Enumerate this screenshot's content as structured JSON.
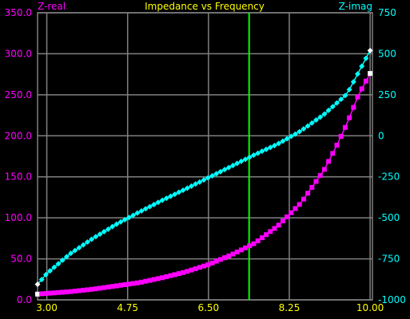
{
  "chart_data": {
    "type": "line",
    "title": "Impedance vs Frequency",
    "ylabel_left": "Z-real",
    "ylabel_right": "Z-imag",
    "xlim": [
      2.8,
      10.05
    ],
    "ylim_left": [
      0,
      350
    ],
    "ylim_right": [
      -1000,
      750
    ],
    "x_ticks": [
      "3.00",
      "4.75",
      "6.50",
      "8.25",
      "10.00"
    ],
    "x_tick_values": [
      3.0,
      4.75,
      6.5,
      8.25,
      10.0
    ],
    "y_left_ticks": [
      "0.0",
      "50.0",
      "100.0",
      "150.0",
      "200.0",
      "250.0",
      "300.0",
      "350.0"
    ],
    "y_left_tick_values": [
      0,
      50,
      100,
      150,
      200,
      250,
      300,
      350
    ],
    "y_right_ticks": [
      "-1000",
      "-750",
      "-500",
      "-250",
      "0",
      "250",
      "500",
      "750"
    ],
    "y_right_tick_values": [
      -1000,
      -750,
      -500,
      -250,
      0,
      250,
      500,
      750
    ],
    "grid": true,
    "marker_line_x": 7.38,
    "colors": {
      "background": "#000000",
      "grid": "#808080",
      "title": "#ffff00",
      "x_ticks": "#ffff00",
      "z_real": "#ff00ff",
      "z_imag": "#00ffff",
      "marker_line": "#00ff00",
      "endpoint": "#ffffff"
    },
    "series": [
      {
        "name": "Z-real",
        "axis": "left",
        "x": [
          2.8,
          3.5,
          4.0,
          4.5,
          5.0,
          5.5,
          6.0,
          6.5,
          7.0,
          7.5,
          8.0,
          8.5,
          9.0,
          9.25,
          9.5,
          9.75,
          10.0
        ],
        "values": [
          7,
          10,
          13,
          17,
          21,
          27,
          34,
          43,
          55,
          69,
          90,
          118,
          158,
          185,
          215,
          250,
          276
        ]
      },
      {
        "name": "Z-imag",
        "axis": "right",
        "x": [
          2.8,
          3.0,
          3.5,
          4.0,
          4.5,
          5.0,
          5.5,
          6.0,
          6.5,
          7.0,
          7.5,
          8.0,
          8.5,
          9.0,
          9.5,
          10.0
        ],
        "values": [
          -905,
          -840,
          -720,
          -625,
          -540,
          -465,
          -393,
          -325,
          -255,
          -185,
          -115,
          -50,
          30,
          130,
          255,
          520
        ]
      }
    ]
  }
}
